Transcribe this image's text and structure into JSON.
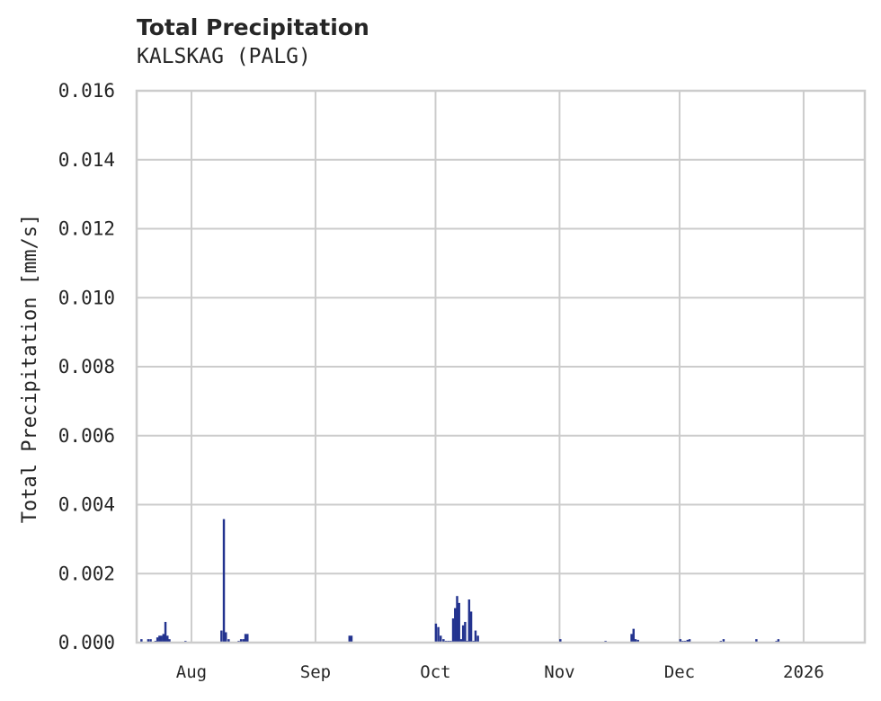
{
  "header": {
    "title": "Total Precipitation",
    "subtitle": "KALSKAG (PALG)"
  },
  "chart_data": {
    "type": "bar",
    "title": "Total Precipitation",
    "subtitle": "KALSKAG (PALG)",
    "xlabel": "",
    "ylabel": "Total Precipitation [mm/s]",
    "ylim": [
      0,
      0.016
    ],
    "yticks": [
      "0.000",
      "0.002",
      "0.004",
      "0.006",
      "0.008",
      "0.010",
      "0.012",
      "0.014",
      "0.016"
    ],
    "xticks": [
      "Aug",
      "Sep",
      "Oct",
      "Nov",
      "Dec",
      "2026"
    ],
    "xtick_day_offsets": [
      0,
      31,
      61,
      92,
      122,
      153
    ],
    "xlim_day_offsets": [
      -13.7,
      168.3
    ],
    "grid": true,
    "legend": null,
    "bar_color": "#23338f",
    "grid_color": "#cccccc",
    "series": [
      {
        "name": "Total Precipitation",
        "points": [
          {
            "day": -12.5,
            "value": 0.0001
          },
          {
            "day": -10.8,
            "value": 0.0001
          },
          {
            "day": -10.2,
            "value": 0.0001
          },
          {
            "day": -9.0,
            "value": 5e-05
          },
          {
            "day": -8.5,
            "value": 0.00015
          },
          {
            "day": -8.0,
            "value": 0.0002
          },
          {
            "day": -7.5,
            "value": 0.0002
          },
          {
            "day": -7.0,
            "value": 0.00025
          },
          {
            "day": -6.5,
            "value": 0.0006
          },
          {
            "day": -6.0,
            "value": 0.0002
          },
          {
            "day": -5.5,
            "value": 0.0001
          },
          {
            "day": -1.5,
            "value": 5e-05
          },
          {
            "day": 7.5,
            "value": 0.00035
          },
          {
            "day": 8.1,
            "value": 0.00358
          },
          {
            "day": 8.6,
            "value": 0.0003
          },
          {
            "day": 9.3,
            "value": 0.0001
          },
          {
            "day": 11.8,
            "value": 5e-05
          },
          {
            "day": 12.4,
            "value": 0.0001
          },
          {
            "day": 13.0,
            "value": 0.0001
          },
          {
            "day": 13.5,
            "value": 0.00025
          },
          {
            "day": 14.0,
            "value": 0.00025
          },
          {
            "day": 39.5,
            "value": 0.0002
          },
          {
            "day": 40.0,
            "value": 0.0002
          },
          {
            "day": 61.1,
            "value": 0.00055
          },
          {
            "day": 61.7,
            "value": 0.00045
          },
          {
            "day": 62.3,
            "value": 0.0002
          },
          {
            "day": 63.0,
            "value": 0.0001
          },
          {
            "day": 63.6,
            "value": 5e-05
          },
          {
            "day": 64.2,
            "value": 5e-05
          },
          {
            "day": 64.8,
            "value": 5e-05
          },
          {
            "day": 65.4,
            "value": 0.0007
          },
          {
            "day": 65.9,
            "value": 0.001
          },
          {
            "day": 66.4,
            "value": 0.00135
          },
          {
            "day": 66.9,
            "value": 0.00115
          },
          {
            "day": 67.4,
            "value": 0.0001
          },
          {
            "day": 67.9,
            "value": 0.0005
          },
          {
            "day": 68.4,
            "value": 0.0006
          },
          {
            "day": 68.9,
            "value": 5e-05
          },
          {
            "day": 69.4,
            "value": 0.00125
          },
          {
            "day": 69.9,
            "value": 0.0009
          },
          {
            "day": 70.5,
            "value": 5e-05
          },
          {
            "day": 71.0,
            "value": 0.00035
          },
          {
            "day": 71.6,
            "value": 0.0002
          },
          {
            "day": 92.2,
            "value": 0.0001
          },
          {
            "day": 103.5,
            "value": 5e-05
          },
          {
            "day": 110.0,
            "value": 0.00025
          },
          {
            "day": 110.5,
            "value": 0.0004
          },
          {
            "day": 111.0,
            "value": 0.0001
          },
          {
            "day": 111.6,
            "value": 8e-05
          },
          {
            "day": 122.2,
            "value": 0.0001
          },
          {
            "day": 122.8,
            "value": 5e-05
          },
          {
            "day": 123.4,
            "value": 5e-05
          },
          {
            "day": 124.0,
            "value": 8e-05
          },
          {
            "day": 124.5,
            "value": 0.0001
          },
          {
            "day": 132.3,
            "value": 5e-05
          },
          {
            "day": 133.0,
            "value": 0.0001
          },
          {
            "day": 141.2,
            "value": 0.0001
          },
          {
            "day": 146.2,
            "value": 5e-05
          },
          {
            "day": 146.7,
            "value": 0.0001
          }
        ]
      }
    ]
  }
}
